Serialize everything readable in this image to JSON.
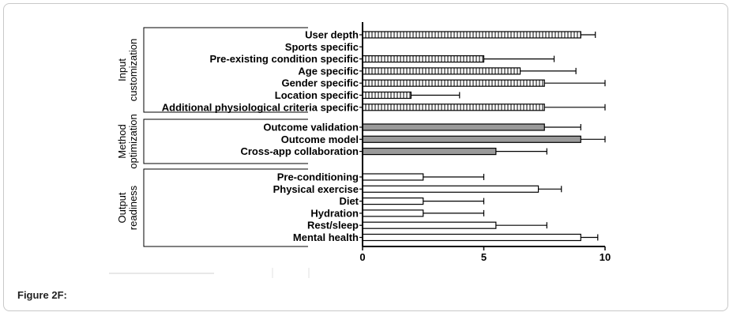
{
  "caption": "Figure 2F:",
  "colors": {
    "input_fill": "#ffffff",
    "method_fill": "#9a9a9a",
    "output_fill": "#ffffff",
    "stroke": "#000000"
  },
  "chart_data": {
    "type": "bar",
    "orientation": "horizontal",
    "xlim": [
      0,
      10
    ],
    "xticks": [
      "0",
      "5",
      "10"
    ],
    "grid": false,
    "error_bars": true,
    "groups": [
      {
        "label_lines": [
          "Input",
          "customization"
        ],
        "fill": "hatched",
        "items": [
          {
            "label": "User depth",
            "value": 9.0,
            "error": 0.6
          },
          {
            "label": "Sports specific",
            "value": 0,
            "error": 0
          },
          {
            "label": "Pre-existing condition specific",
            "value": 5.0,
            "error": 2.9
          },
          {
            "label": "Age specific",
            "value": 6.5,
            "error": 2.3
          },
          {
            "label": "Gender specific",
            "value": 7.5,
            "error": 2.5
          },
          {
            "label": "Location specific",
            "value": 2.0,
            "error": 2.0
          },
          {
            "label": "Additional physiological criteria specific",
            "value": 7.5,
            "error": 2.5
          }
        ]
      },
      {
        "label_lines": [
          "Method",
          "optimization"
        ],
        "fill": "gray",
        "items": [
          {
            "label": "Outcome validation",
            "value": 7.5,
            "error": 1.5
          },
          {
            "label": "Outcome model",
            "value": 9.0,
            "error": 1.0
          },
          {
            "label": "Cross-app collaboration",
            "value": 5.5,
            "error": 2.1
          }
        ]
      },
      {
        "label_lines": [
          "Output",
          "readiness"
        ],
        "fill": "white",
        "items": [
          {
            "label": "Pre-conditioning",
            "value": 2.5,
            "error": 2.5
          },
          {
            "label": "Physical exercise",
            "value": 7.25,
            "error": 0.95
          },
          {
            "label": "Diet",
            "value": 2.5,
            "error": 2.5
          },
          {
            "label": "Hydration",
            "value": 2.5,
            "error": 2.5
          },
          {
            "label": "Rest/sleep",
            "value": 5.5,
            "error": 2.1
          },
          {
            "label": "Mental health",
            "value": 9.0,
            "error": 0.7
          }
        ]
      }
    ]
  }
}
